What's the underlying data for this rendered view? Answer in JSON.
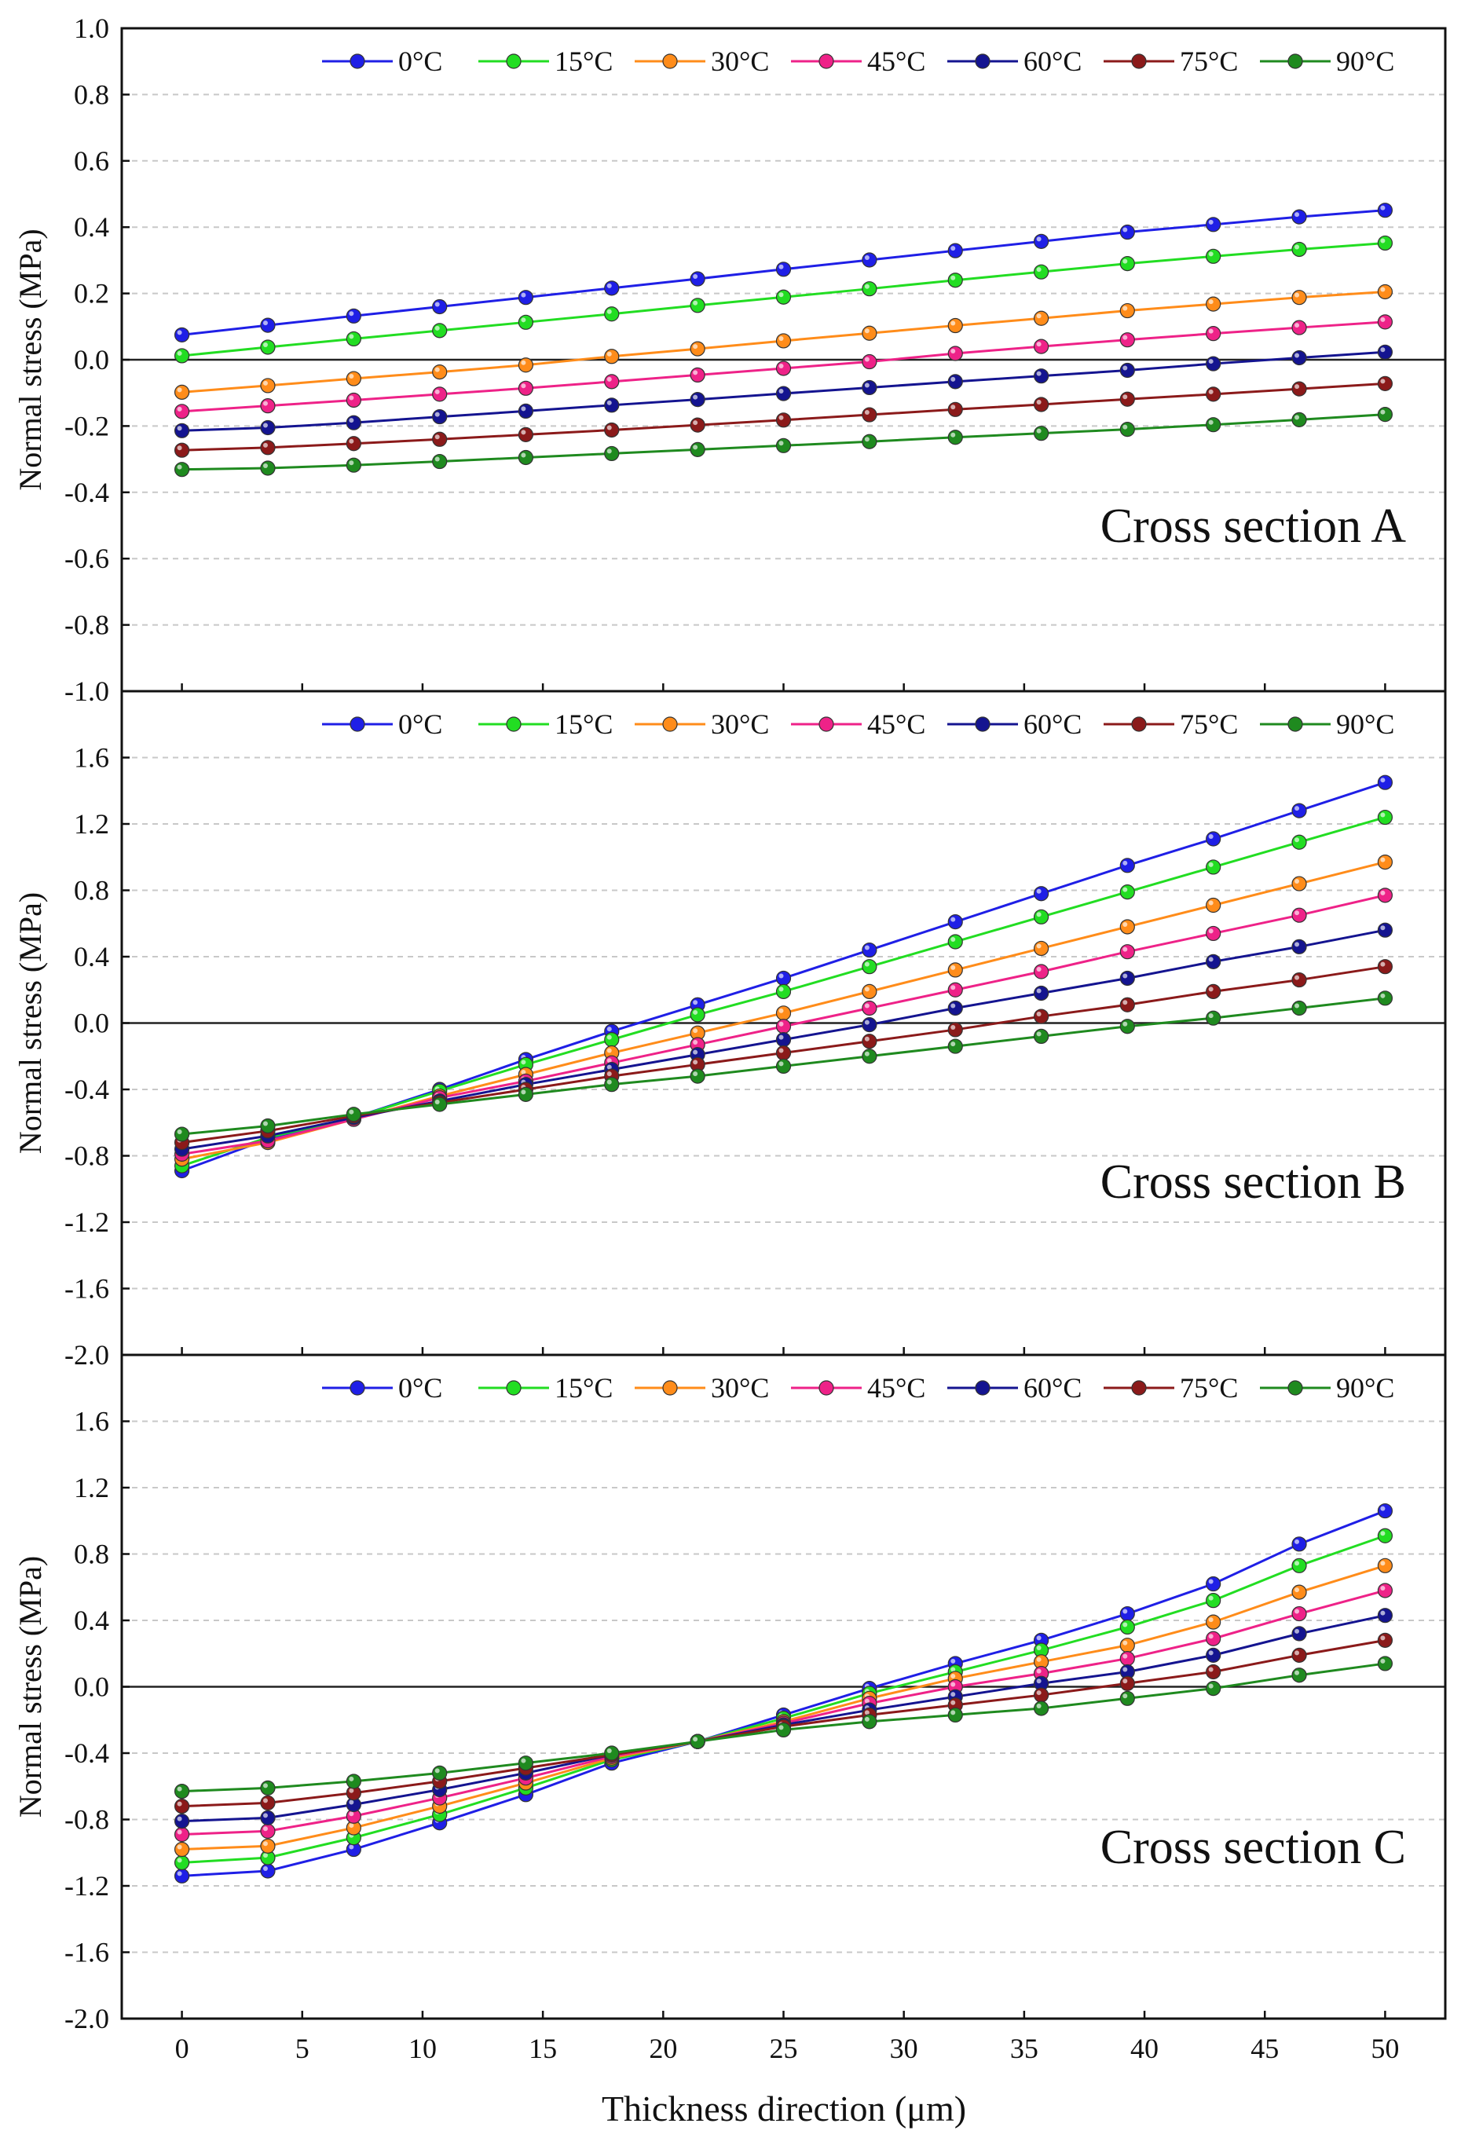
{
  "figure": {
    "xlabel": "Thickness direction (μm)",
    "x_ticks": [
      0,
      5,
      10,
      15,
      20,
      25,
      30,
      35,
      40,
      45,
      50
    ],
    "series_names": [
      "0°C",
      "15°C",
      "30°C",
      "45°C",
      "60°C",
      "75°C",
      "90°C"
    ],
    "series_colors": [
      "#1f1fe6",
      "#22dd22",
      "#ff8c1a",
      "#ee2288",
      "#141490",
      "#8b1a1a",
      "#1f8a1f"
    ]
  },
  "chart_data": [
    {
      "type": "line",
      "title": "Cross section A",
      "xlabel": "Thickness direction (μm)",
      "ylabel": "Normal stress (MPa)",
      "xlim": [
        -2.5,
        52.5
      ],
      "ylim": [
        -1.0,
        1.0
      ],
      "y_ticks": [
        -1.0,
        -0.8,
        -0.6,
        -0.4,
        -0.2,
        0.0,
        0.2,
        0.4,
        0.6,
        0.8,
        1.0
      ],
      "y_tick_labels": [
        "-1.0",
        "-0.8",
        "-0.6",
        "-0.4",
        "-0.2",
        "0.0",
        "0.2",
        "0.4",
        "0.6",
        "0.8",
        "1.0"
      ],
      "grid": true,
      "legend": "top",
      "x": [
        0,
        3.57,
        7.14,
        10.71,
        14.29,
        17.86,
        21.43,
        25,
        28.57,
        32.14,
        35.71,
        39.29,
        42.86,
        46.43,
        50
      ],
      "series": [
        {
          "name": "0°C",
          "values": [
            0.075,
            0.104,
            0.132,
            0.16,
            0.188,
            0.216,
            0.244,
            0.273,
            0.301,
            0.329,
            0.357,
            0.385,
            0.408,
            0.431,
            0.451
          ]
        },
        {
          "name": "15°C",
          "values": [
            0.012,
            0.038,
            0.063,
            0.088,
            0.113,
            0.138,
            0.164,
            0.189,
            0.214,
            0.24,
            0.265,
            0.29,
            0.312,
            0.333,
            0.352
          ]
        },
        {
          "name": "30°C",
          "values": [
            -0.098,
            -0.078,
            -0.057,
            -0.037,
            -0.016,
            0.01,
            0.033,
            0.057,
            0.08,
            0.103,
            0.125,
            0.148,
            0.168,
            0.188,
            0.205
          ]
        },
        {
          "name": "45°C",
          "values": [
            -0.156,
            -0.139,
            -0.122,
            -0.104,
            -0.086,
            -0.066,
            -0.046,
            -0.026,
            -0.006,
            0.019,
            0.04,
            0.06,
            0.079,
            0.097,
            0.114
          ]
        },
        {
          "name": "60°C",
          "values": [
            -0.214,
            -0.205,
            -0.19,
            -0.172,
            -0.155,
            -0.137,
            -0.12,
            -0.102,
            -0.084,
            -0.066,
            -0.049,
            -0.032,
            -0.012,
            0.006,
            0.023
          ]
        },
        {
          "name": "75°C",
          "values": [
            -0.273,
            -0.265,
            -0.253,
            -0.24,
            -0.226,
            -0.212,
            -0.197,
            -0.182,
            -0.166,
            -0.15,
            -0.135,
            -0.119,
            -0.104,
            -0.088,
            -0.072
          ]
        },
        {
          "name": "90°C",
          "values": [
            -0.331,
            -0.327,
            -0.318,
            -0.307,
            -0.295,
            -0.283,
            -0.271,
            -0.259,
            -0.247,
            -0.234,
            -0.222,
            -0.21,
            -0.196,
            -0.181,
            -0.165
          ]
        }
      ]
    },
    {
      "type": "line",
      "title": "Cross section B",
      "xlabel": "Thickness direction (μm)",
      "ylabel": "Normal stress (MPa)",
      "xlim": [
        -2.5,
        52.5
      ],
      "ylim": [
        -2.0,
        2.0
      ],
      "y_ticks": [
        -2.0,
        -1.6,
        -1.2,
        -0.8,
        -0.4,
        0.0,
        0.4,
        0.8,
        1.2,
        1.6
      ],
      "y_tick_labels": [
        "-2.0",
        "-1.6",
        "-1.2",
        "-0.8",
        "-0.4",
        "0.0",
        "0.4",
        "0.8",
        "1.2",
        "1.6"
      ],
      "grid": true,
      "legend": "top",
      "x": [
        0,
        3.57,
        7.14,
        10.71,
        14.29,
        17.86,
        21.43,
        25,
        28.57,
        32.14,
        35.71,
        39.29,
        42.86,
        46.43,
        50
      ],
      "series": [
        {
          "name": "0°C",
          "values": [
            -0.89,
            -0.7,
            -0.57,
            -0.4,
            -0.22,
            -0.05,
            0.11,
            0.27,
            0.44,
            0.61,
            0.78,
            0.95,
            1.11,
            1.28,
            1.45
          ]
        },
        {
          "name": "15°C",
          "values": [
            -0.86,
            -0.69,
            -0.57,
            -0.41,
            -0.25,
            -0.1,
            0.05,
            0.19,
            0.34,
            0.49,
            0.64,
            0.79,
            0.94,
            1.09,
            1.24
          ]
        },
        {
          "name": "30°C",
          "values": [
            -0.82,
            -0.72,
            -0.58,
            -0.44,
            -0.31,
            -0.18,
            -0.06,
            0.06,
            0.19,
            0.32,
            0.45,
            0.58,
            0.71,
            0.84,
            0.97
          ]
        },
        {
          "name": "45°C",
          "values": [
            -0.79,
            -0.71,
            -0.58,
            -0.45,
            -0.35,
            -0.24,
            -0.13,
            -0.02,
            0.09,
            0.2,
            0.31,
            0.43,
            0.54,
            0.65,
            0.77
          ]
        },
        {
          "name": "60°C",
          "values": [
            -0.76,
            -0.68,
            -0.57,
            -0.47,
            -0.37,
            -0.28,
            -0.19,
            -0.1,
            -0.01,
            0.09,
            0.18,
            0.27,
            0.37,
            0.46,
            0.56
          ]
        },
        {
          "name": "75°C",
          "values": [
            -0.72,
            -0.65,
            -0.56,
            -0.48,
            -0.4,
            -0.32,
            -0.25,
            -0.18,
            -0.11,
            -0.04,
            0.04,
            0.11,
            0.19,
            0.26,
            0.34
          ]
        },
        {
          "name": "90°C",
          "values": [
            -0.67,
            -0.62,
            -0.55,
            -0.49,
            -0.43,
            -0.37,
            -0.32,
            -0.26,
            -0.2,
            -0.14,
            -0.08,
            -0.02,
            0.03,
            0.09,
            0.15
          ]
        }
      ]
    },
    {
      "type": "line",
      "title": "Cross section C",
      "xlabel": "Thickness direction (μm)",
      "ylabel": "Normal stress (MPa)",
      "xlim": [
        -2.5,
        52.5
      ],
      "ylim": [
        -2.0,
        2.0
      ],
      "y_ticks": [
        -2.0,
        -1.6,
        -1.2,
        -0.8,
        -0.4,
        0.0,
        0.4,
        0.8,
        1.2,
        1.6
      ],
      "y_tick_labels": [
        "-2.0",
        "-1.6",
        "-1.2",
        "-0.8",
        "-0.4",
        "0.0",
        "0.4",
        "0.8",
        "1.2",
        "1.6"
      ],
      "grid": true,
      "legend": "top",
      "x": [
        0,
        3.57,
        7.14,
        10.71,
        14.29,
        17.86,
        21.43,
        25,
        28.57,
        32.14,
        35.71,
        39.29,
        42.86,
        46.43,
        50
      ],
      "series": [
        {
          "name": "0°C",
          "values": [
            -1.14,
            -1.11,
            -0.98,
            -0.82,
            -0.65,
            -0.46,
            -0.33,
            -0.17,
            -0.01,
            0.14,
            0.28,
            0.44,
            0.62,
            0.86,
            1.06
          ]
        },
        {
          "name": "15°C",
          "values": [
            -1.06,
            -1.03,
            -0.91,
            -0.77,
            -0.61,
            -0.44,
            -0.33,
            -0.19,
            -0.04,
            0.09,
            0.22,
            0.36,
            0.52,
            0.73,
            0.91
          ]
        },
        {
          "name": "30°C",
          "values": [
            -0.98,
            -0.96,
            -0.85,
            -0.72,
            -0.58,
            -0.43,
            -0.33,
            -0.21,
            -0.07,
            0.05,
            0.15,
            0.25,
            0.39,
            0.57,
            0.73
          ]
        },
        {
          "name": "45°C",
          "values": [
            -0.89,
            -0.87,
            -0.78,
            -0.67,
            -0.55,
            -0.42,
            -0.33,
            -0.22,
            -0.1,
            0.0,
            0.08,
            0.17,
            0.29,
            0.44,
            0.58
          ]
        },
        {
          "name": "60°C",
          "values": [
            -0.81,
            -0.79,
            -0.71,
            -0.62,
            -0.52,
            -0.41,
            -0.33,
            -0.23,
            -0.14,
            -0.06,
            0.02,
            0.09,
            0.19,
            0.32,
            0.43
          ]
        },
        {
          "name": "75°C",
          "values": [
            -0.72,
            -0.7,
            -0.64,
            -0.57,
            -0.49,
            -0.41,
            -0.33,
            -0.24,
            -0.17,
            -0.11,
            -0.05,
            0.02,
            0.09,
            0.19,
            0.28
          ]
        },
        {
          "name": "90°C",
          "values": [
            -0.63,
            -0.61,
            -0.57,
            -0.52,
            -0.46,
            -0.4,
            -0.33,
            -0.26,
            -0.21,
            -0.17,
            -0.13,
            -0.07,
            -0.01,
            0.07,
            0.14
          ]
        }
      ]
    }
  ]
}
